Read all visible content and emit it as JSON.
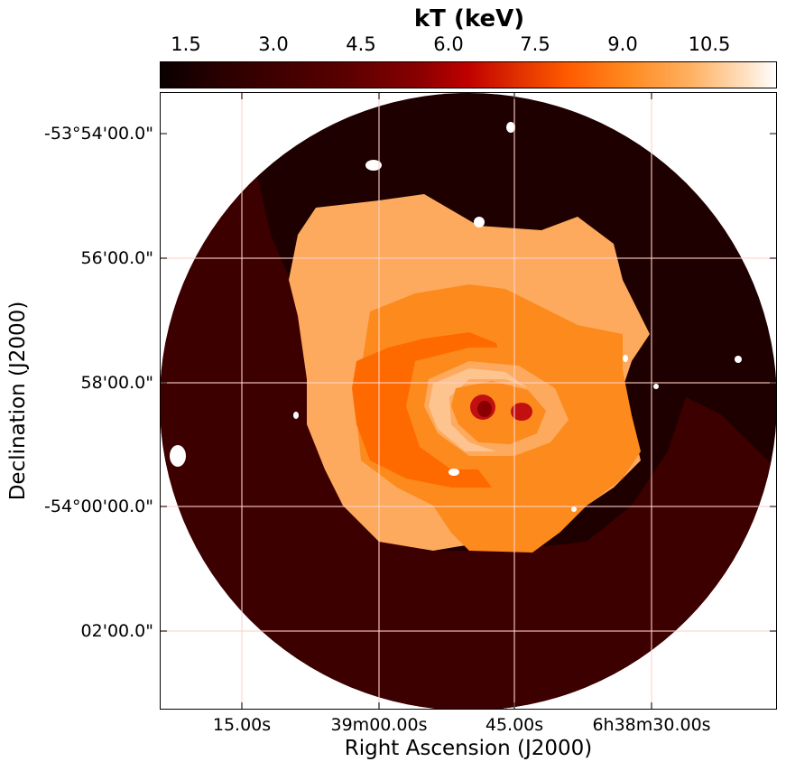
{
  "colorbar": {
    "title": "kT (keV)",
    "ticks": [
      "1.5",
      "3.0",
      "4.5",
      "6.0",
      "7.5",
      "9.0",
      "10.5"
    ],
    "colors": [
      "#0a0000",
      "#5a0000",
      "#c00000",
      "#ff5a00",
      "#ffb060",
      "#ffffff"
    ]
  },
  "axes": {
    "xlabel": "Right Ascension (J2000)",
    "ylabel": "Declination (J2000)",
    "x_ticks": [
      "15.00s",
      "39m00.00s",
      "45.00s",
      "6h38m30.00s"
    ],
    "y_ticks": [
      "-53°54'00.0\"",
      "56'00.0\"",
      "58'00.0\"",
      "-54°00'00.0\"",
      "02'00.0\""
    ],
    "grid": true
  },
  "map_colors": {
    "background_outer": "#1e0000",
    "outer_region": "#3d0000",
    "plateau": "#fdaa5e",
    "mid": "#fd8a1c",
    "hot_ring": "#fe6a00",
    "light_ring": "#fdc490",
    "core_dark": "#a80000",
    "core_red": "#c21010"
  }
}
